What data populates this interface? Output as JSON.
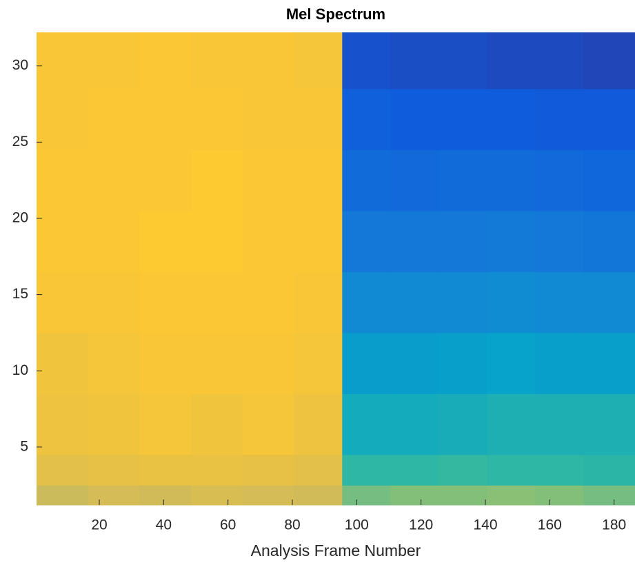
{
  "chart_data": {
    "type": "heatmap",
    "title": "Mel Spectrum",
    "xlabel": "Analysis Frame Number",
    "x_edges": [
      0.5,
      16.5,
      32.5,
      48.5,
      64.5,
      80.5,
      95.5,
      110.5,
      125.5,
      140.5,
      155.5,
      170.5,
      186.5
    ],
    "y_edges": [
      1.2,
      2.5,
      4.5,
      8.5,
      12.5,
      16.5,
      20.5,
      24.5,
      28.5,
      32.2
    ],
    "values": [
      [
        0.74,
        0.76,
        0.75,
        0.77,
        0.76,
        0.75,
        0.6,
        0.62,
        0.62,
        0.63,
        0.62,
        0.6
      ],
      [
        0.8,
        0.81,
        0.82,
        0.82,
        0.81,
        0.8,
        0.5,
        0.5,
        0.51,
        0.5,
        0.5,
        0.49
      ],
      [
        0.83,
        0.84,
        0.85,
        0.84,
        0.85,
        0.83,
        0.42,
        0.42,
        0.43,
        0.45,
        0.45,
        0.45
      ],
      [
        0.84,
        0.85,
        0.86,
        0.86,
        0.86,
        0.85,
        0.35,
        0.35,
        0.36,
        0.37,
        0.36,
        0.36
      ],
      [
        0.86,
        0.86,
        0.87,
        0.87,
        0.87,
        0.86,
        0.28,
        0.28,
        0.28,
        0.29,
        0.28,
        0.28
      ],
      [
        0.87,
        0.87,
        0.88,
        0.88,
        0.87,
        0.87,
        0.22,
        0.22,
        0.22,
        0.23,
        0.22,
        0.21
      ],
      [
        0.87,
        0.87,
        0.87,
        0.88,
        0.87,
        0.87,
        0.18,
        0.17,
        0.18,
        0.18,
        0.17,
        0.16
      ],
      [
        0.86,
        0.87,
        0.87,
        0.87,
        0.86,
        0.86,
        0.14,
        0.13,
        0.13,
        0.13,
        0.12,
        0.12
      ],
      [
        0.86,
        0.86,
        0.87,
        0.86,
        0.86,
        0.85,
        0.1,
        0.09,
        0.09,
        0.08,
        0.08,
        0.07
      ]
    ],
    "colormap": [
      "#352a87",
      "#0f5cdd",
      "#1481d6",
      "#06a4ca",
      "#2eb7a4",
      "#87bf77",
      "#d1bb59",
      "#fec832",
      "#f9fb0e"
    ],
    "xlim": [
      0.5,
      186.5
    ],
    "ylim": [
      1.2,
      32.2
    ],
    "xticks": [
      20,
      40,
      60,
      80,
      100,
      120,
      140,
      160,
      180
    ],
    "yticks": [
      5,
      10,
      15,
      20,
      25,
      30
    ]
  }
}
